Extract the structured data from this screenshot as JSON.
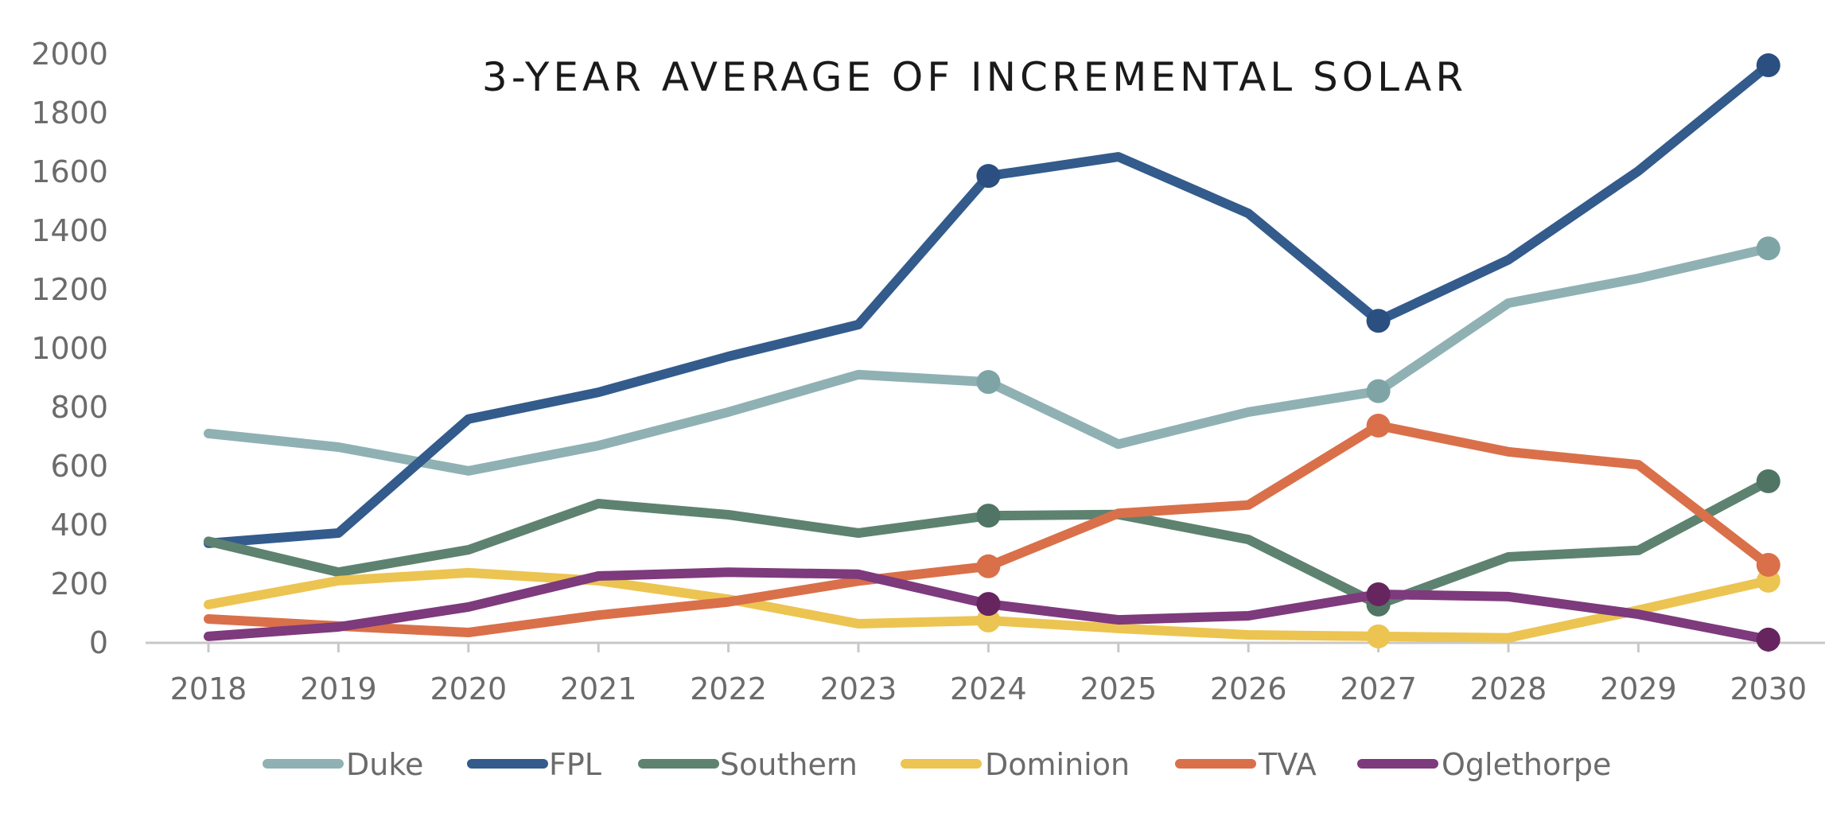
{
  "chart_data": {
    "type": "line",
    "title": "3-YEAR AVERAGE OF INCREMENTAL SOLAR",
    "xlabel": "",
    "ylabel": "",
    "x": [
      "2018",
      "2019",
      "2020",
      "2021",
      "2022",
      "2023",
      "2024",
      "2025",
      "2026",
      "2027",
      "2028",
      "2029",
      "2030"
    ],
    "ylim": [
      0,
      2000
    ],
    "yticks": [
      0,
      200,
      400,
      600,
      800,
      1000,
      1200,
      1400,
      1600,
      1800,
      2000
    ],
    "grid": false,
    "legend_position": "bottom",
    "marker_years": [
      "2024",
      "2027",
      "2030"
    ],
    "series": [
      {
        "name": "Duke",
        "color": "#8fb1b3",
        "marker_color": "#7fa4a6",
        "values": [
          711,
          665,
          584,
          670,
          784,
          911,
          886,
          675,
          784,
          855,
          1154,
          1238,
          1340
        ]
      },
      {
        "name": "FPL",
        "color": "#335b8c",
        "marker_color": "#2a4f80",
        "values": [
          338,
          373,
          760,
          851,
          973,
          1081,
          1586,
          1651,
          1459,
          1094,
          1301,
          1603,
          1962
        ]
      },
      {
        "name": "Southern",
        "color": "#5e8270",
        "marker_color": "#507564",
        "values": [
          345,
          240,
          316,
          473,
          435,
          373,
          432,
          436,
          351,
          130,
          292,
          314,
          549
        ]
      },
      {
        "name": "Dominion",
        "color": "#ecc451",
        "marker_color": "#ecc451",
        "values": [
          130,
          211,
          238,
          211,
          148,
          65,
          76,
          49,
          27,
          22,
          17,
          111,
          211
        ]
      },
      {
        "name": "TVA",
        "color": "#d9704a",
        "marker_color": "#d9704a",
        "values": [
          81,
          57,
          35,
          94,
          139,
          210,
          260,
          440,
          468,
          738,
          649,
          605,
          265
        ]
      },
      {
        "name": "Oglethorpe",
        "color": "#7d3a7c",
        "marker_color": "#66255f",
        "values": [
          22,
          54,
          122,
          227,
          240,
          233,
          132,
          78,
          92,
          165,
          157,
          97,
          11
        ]
      }
    ]
  }
}
